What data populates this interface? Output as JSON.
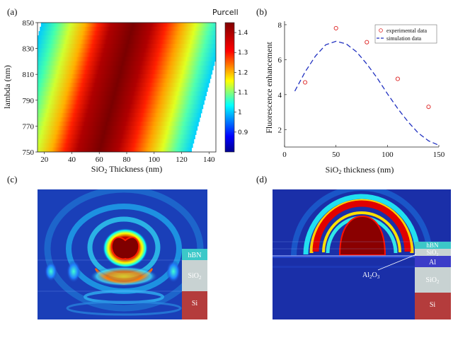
{
  "panels": {
    "a": {
      "label": "(a)"
    },
    "b": {
      "label": "(b)"
    },
    "c": {
      "label": "(c)"
    },
    "d": {
      "label": "(d)"
    }
  },
  "chart_data": [
    {
      "type": "heatmap",
      "title": "",
      "xlabel": "SiO2 Thickness (nm)",
      "xlabel_main": "SiO",
      "xlabel_sub": "2",
      "xlabel_rest": " Thickness (nm)",
      "ylabel": "lambda (nm)",
      "xlim": [
        15,
        145
      ],
      "ylim": [
        750,
        850
      ],
      "x_ticks": [
        "20",
        "40",
        "60",
        "80",
        "100",
        "120",
        "140"
      ],
      "y_ticks": [
        "750",
        "770",
        "790",
        "810",
        "830",
        "850"
      ],
      "colorbar_title": "Purcell",
      "colorbar_range": [
        0.8,
        1.45
      ],
      "colorbar_ticks": [
        "1.4",
        "1.3",
        "1.2",
        "1.1",
        "1",
        "0.9"
      ],
      "peak_thickness_at_750nm": 60,
      "peak_thickness_at_850nm": 85
    },
    {
      "type": "scatter",
      "title": "",
      "xlabel": "SiO2 thickness (nm)",
      "xlabel_main": "SiO",
      "xlabel_sub": "2",
      "xlabel_rest": " thickness (nm)",
      "ylabel": "Fluorescence enhancement",
      "xlim": [
        0,
        150
      ],
      "ylim": [
        1,
        8.2
      ],
      "x_ticks": [
        "0",
        "50",
        "100",
        "150"
      ],
      "y_ticks": [
        "2",
        "4",
        "6",
        "8"
      ],
      "legend_position": "top-right",
      "series": [
        {
          "name": "experimental data",
          "style": "markers",
          "x": [
            20,
            50,
            80,
            110,
            140
          ],
          "y": [
            4.7,
            7.8,
            7.0,
            4.9,
            3.3
          ]
        },
        {
          "name": "simulation data",
          "style": "dashed-line",
          "x": [
            10,
            20,
            30,
            40,
            50,
            60,
            70,
            80,
            90,
            100,
            110,
            120,
            130,
            140,
            150
          ],
          "y": [
            4.2,
            5.3,
            6.2,
            6.85,
            7.05,
            6.9,
            6.45,
            5.75,
            4.95,
            4.05,
            3.2,
            2.45,
            1.8,
            1.35,
            1.1
          ]
        }
      ]
    }
  ],
  "field_maps": {
    "c": {
      "layers": [
        "hBN",
        "SiO2",
        "Si"
      ],
      "layer_label_sio2_main": "SiO",
      "layer_label_sio2_sub": "2"
    },
    "d": {
      "layers": [
        "hBN",
        "SiO2",
        "Al",
        "SiO2",
        "Si"
      ],
      "callout": "Al2O3",
      "callout_main": "Al",
      "callout_sub1": "2",
      "callout_o": "O",
      "callout_sub2": "3"
    }
  },
  "colors": {
    "jet_dark_red": "#800000",
    "jet_red": "#ff0000",
    "jet_yellow": "#ffff00",
    "jet_cyan": "#00ffff",
    "jet_blue": "#0000ff",
    "jet_dark_blue": "#00008f",
    "field_bg": "#1a3fb8",
    "hbn": "#3cc8c8",
    "sio2": "#c8d2d2",
    "si": "#b43c3c",
    "al": "#3c3cc8",
    "marker": "#dd2222",
    "dash": "#2030c0"
  }
}
